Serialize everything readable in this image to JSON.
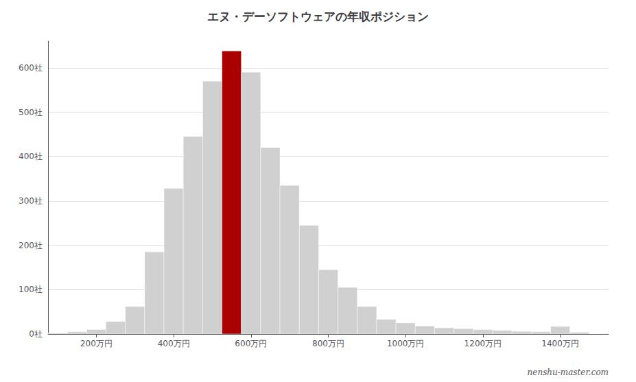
{
  "chart_data": {
    "type": "bar",
    "title": "エヌ・デーソフトウェアの年収ポジション",
    "annotation": "nenshu-master.com",
    "x": [
      100,
      150,
      200,
      250,
      300,
      350,
      400,
      450,
      500,
      550,
      600,
      650,
      700,
      750,
      800,
      850,
      900,
      950,
      1000,
      1050,
      1100,
      1150,
      1200,
      1250,
      1300,
      1350,
      1400,
      1450
    ],
    "values": [
      2,
      5,
      10,
      28,
      62,
      185,
      328,
      445,
      570,
      638,
      590,
      420,
      335,
      245,
      145,
      105,
      62,
      33,
      25,
      18,
      14,
      12,
      10,
      8,
      6,
      5,
      17,
      4
    ],
    "colors": [
      "#d0d0d0",
      "#d0d0d0",
      "#d0d0d0",
      "#d0d0d0",
      "#d0d0d0",
      "#d0d0d0",
      "#d0d0d0",
      "#d0d0d0",
      "#d0d0d0",
      "#aa0000",
      "#d0d0d0",
      "#d0d0d0",
      "#d0d0d0",
      "#d0d0d0",
      "#d0d0d0",
      "#d0d0d0",
      "#d0d0d0",
      "#d0d0d0",
      "#d0d0d0",
      "#d0d0d0",
      "#d0d0d0",
      "#d0d0d0",
      "#d0d0d0",
      "#d0d0d0",
      "#d0d0d0",
      "#d0d0d0",
      "#d0d0d0",
      "#d0d0d0"
    ],
    "xlim": [
      75,
      1525
    ],
    "xticks": [
      {
        "value": 200,
        "label": "200万円"
      },
      {
        "value": 400,
        "label": "400万円"
      },
      {
        "value": 600,
        "label": "600万円"
      },
      {
        "value": 800,
        "label": "800万円"
      },
      {
        "value": 1000,
        "label": "1000万円"
      },
      {
        "value": 1200,
        "label": "1200万円"
      },
      {
        "value": 1400,
        "label": "1400万円"
      }
    ],
    "ylim": [
      0,
      660
    ],
    "yticks": [
      {
        "value": 0,
        "label": "0社"
      },
      {
        "value": 100,
        "label": "100社"
      },
      {
        "value": 200,
        "label": "200社"
      },
      {
        "value": 300,
        "label": "300社"
      },
      {
        "value": 400,
        "label": "400社"
      },
      {
        "value": 500,
        "label": "500社"
      },
      {
        "value": 600,
        "label": "600社"
      }
    ],
    "grid": true
  }
}
